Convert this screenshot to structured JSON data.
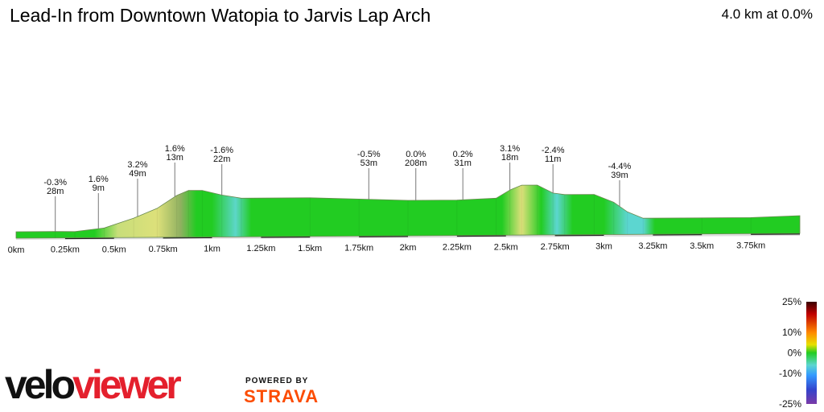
{
  "header": {
    "title": "Lead-In from Downtown Watopia to Jarvis Lap Arch",
    "summary": "4.0 km at 0.0%"
  },
  "colors": {
    "flat": "#22cc22",
    "climb": "#d8e07a",
    "descent": "#5cd6d0",
    "axis": "#dddddd",
    "tick_bar": "#222222"
  },
  "chart_data": {
    "type": "area",
    "title": "Lead-In from Downtown Watopia to Jarvis Lap Arch",
    "x_unit": "km",
    "xlim": [
      0,
      4.0
    ],
    "x_ticks": [
      "0km",
      "0.25km",
      "0.5km",
      "0.75km",
      "1km",
      "1.25km",
      "1.5km",
      "1.75km",
      "2km",
      "2.25km",
      "2.5km",
      "2.75km",
      "3km",
      "3.25km",
      "3.5km",
      "3.75km"
    ],
    "x_tick_values": [
      0,
      0.25,
      0.5,
      0.75,
      1.0,
      1.25,
      1.5,
      1.75,
      2.0,
      2.25,
      2.5,
      2.75,
      3.0,
      3.25,
      3.5,
      3.75
    ],
    "profile_elevation_rel": [
      {
        "x": 0.0,
        "y": 2
      },
      {
        "x": 0.2,
        "y": 2
      },
      {
        "x": 0.3,
        "y": 1.9
      },
      {
        "x": 0.45,
        "y": 4
      },
      {
        "x": 0.6,
        "y": 10
      },
      {
        "x": 0.72,
        "y": 16
      },
      {
        "x": 0.82,
        "y": 24
      },
      {
        "x": 0.88,
        "y": 27
      },
      {
        "x": 0.95,
        "y": 27
      },
      {
        "x": 1.05,
        "y": 24
      },
      {
        "x": 1.15,
        "y": 22
      },
      {
        "x": 1.5,
        "y": 22
      },
      {
        "x": 1.75,
        "y": 21
      },
      {
        "x": 2.0,
        "y": 20
      },
      {
        "x": 2.25,
        "y": 20
      },
      {
        "x": 2.45,
        "y": 21
      },
      {
        "x": 2.52,
        "y": 26
      },
      {
        "x": 2.58,
        "y": 29
      },
      {
        "x": 2.66,
        "y": 29
      },
      {
        "x": 2.74,
        "y": 24
      },
      {
        "x": 2.8,
        "y": 23
      },
      {
        "x": 2.95,
        "y": 23
      },
      {
        "x": 3.05,
        "y": 18
      },
      {
        "x": 3.12,
        "y": 12
      },
      {
        "x": 3.2,
        "y": 8
      },
      {
        "x": 3.5,
        "y": 8
      },
      {
        "x": 3.75,
        "y": 8
      },
      {
        "x": 4.0,
        "y": 9
      }
    ],
    "annotations": [
      {
        "x": 0.2,
        "grade": "-0.3%",
        "length": "28m"
      },
      {
        "x": 0.42,
        "grade": "1.6%",
        "length": "9m"
      },
      {
        "x": 0.62,
        "grade": "3.2%",
        "length": "49m"
      },
      {
        "x": 0.81,
        "grade": "1.6%",
        "length": "13m"
      },
      {
        "x": 1.05,
        "grade": "-1.6%",
        "length": "22m"
      },
      {
        "x": 1.8,
        "grade": "-0.5%",
        "length": "53m"
      },
      {
        "x": 2.04,
        "grade": "0.0%",
        "length": "208m"
      },
      {
        "x": 2.28,
        "grade": "0.2%",
        "length": "31m"
      },
      {
        "x": 2.52,
        "grade": "3.1%",
        "length": "18m"
      },
      {
        "x": 2.74,
        "grade": "-2.4%",
        "length": "11m"
      },
      {
        "x": 3.08,
        "grade": "-4.4%",
        "length": "39m"
      }
    ],
    "legend": {
      "placement": "bottom-right",
      "labels": [
        "25%",
        "10%",
        "0%",
        "-10%",
        "-25%"
      ],
      "values": [
        25,
        10,
        0,
        -10,
        -25
      ]
    }
  },
  "branding": {
    "logo_part1": "velo",
    "logo_part2": "viewer",
    "powered_by": "POWERED BY",
    "strava": "STRAVA"
  }
}
